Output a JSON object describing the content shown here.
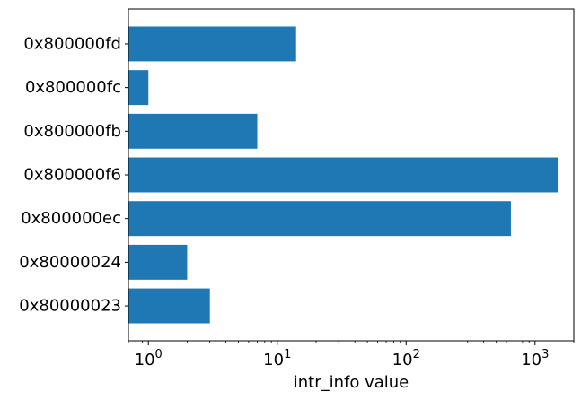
{
  "chart_data": {
    "type": "bar",
    "orientation": "horizontal",
    "title": "",
    "xlabel": "intr_info value",
    "ylabel": "",
    "xscale": "log",
    "xlim": [
      0.7,
      2000
    ],
    "xticks": [
      {
        "value": 1,
        "base": "10",
        "exp": "0"
      },
      {
        "value": 10,
        "base": "10",
        "exp": "1"
      },
      {
        "value": 100,
        "base": "10",
        "exp": "2"
      },
      {
        "value": 1000,
        "base": "10",
        "exp": "3"
      }
    ],
    "categories": [
      "0x80000023",
      "0x80000024",
      "0x800000ec",
      "0x800000f6",
      "0x800000fb",
      "0x800000fc",
      "0x800000fd"
    ],
    "values": [
      3,
      2,
      650,
      1500,
      7,
      1,
      14
    ],
    "bar_color": "#1f77b4",
    "grid": false,
    "legend": "none"
  }
}
